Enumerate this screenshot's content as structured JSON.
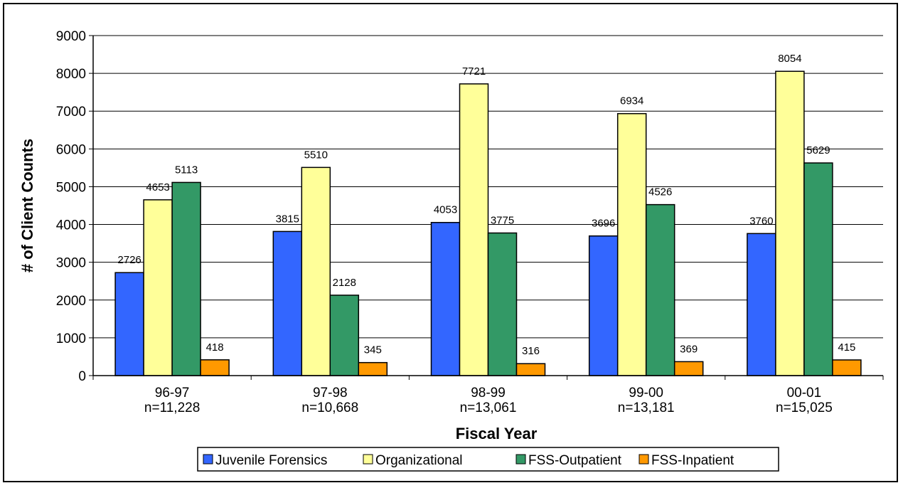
{
  "chart_data": {
    "type": "bar",
    "title": "",
    "xlabel": "Fiscal Year",
    "ylabel": "# of Client Counts",
    "ylim": [
      0,
      9000
    ],
    "yticks": [
      0,
      1000,
      2000,
      3000,
      4000,
      5000,
      6000,
      7000,
      8000,
      9000
    ],
    "grid": true,
    "legend_position": "bottom",
    "categories": [
      "96-97",
      "97-98",
      "98-99",
      "99-00",
      "00-01"
    ],
    "category_sublabels": [
      "n=11,228",
      "n=10,668",
      "n=13,061",
      "n=13,181",
      "n=15,025"
    ],
    "series": [
      {
        "name": "Juvenile Forensics",
        "color": "#3366ff",
        "values": [
          2726,
          3815,
          4053,
          3696,
          3760
        ]
      },
      {
        "name": "Organizational",
        "color": "#ffff99",
        "values": [
          4653,
          5510,
          7721,
          6934,
          8054
        ]
      },
      {
        "name": "FSS-Outpatient",
        "color": "#339966",
        "values": [
          5113,
          2128,
          3775,
          4526,
          5629
        ]
      },
      {
        "name": "FSS-Inpatient",
        "color": "#ff9900",
        "values": [
          418,
          345,
          316,
          369,
          415
        ]
      }
    ]
  }
}
